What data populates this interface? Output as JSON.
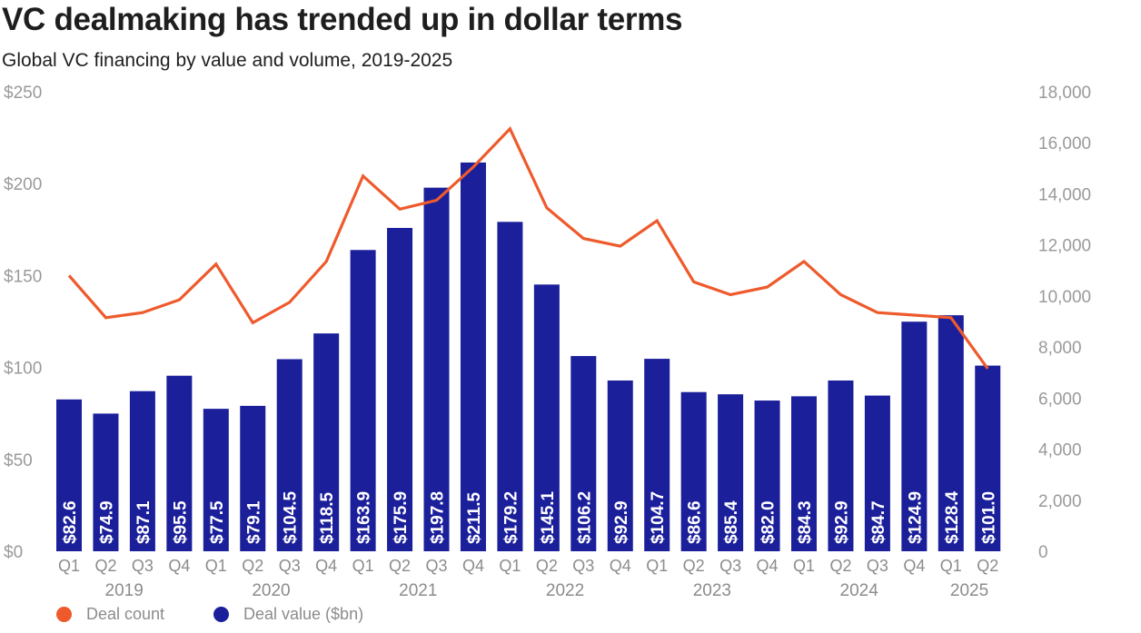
{
  "title": "VC dealmaking has trended up in dollar terms",
  "subtitle": "Global VC financing by value and volume, 2019-2025",
  "colors": {
    "bar": "#1b1f9a",
    "line": "#ee5a2c"
  },
  "legend": [
    {
      "label": "Deal count",
      "color": "#ee5a2c"
    },
    {
      "label": "Deal value ($bn)",
      "color": "#1b1f9a"
    }
  ],
  "chart_data": {
    "type": "bar",
    "categories": [
      "Q1",
      "Q2",
      "Q3",
      "Q4",
      "Q1",
      "Q2",
      "Q3",
      "Q4",
      "Q1",
      "Q2",
      "Q3",
      "Q4",
      "Q1",
      "Q2",
      "Q3",
      "Q4",
      "Q1",
      "Q2",
      "Q3",
      "Q4",
      "Q1",
      "Q2",
      "Q3",
      "Q4",
      "Q1",
      "Q2"
    ],
    "years": [
      "2019",
      "2020",
      "2021",
      "2022",
      "2023",
      "2024",
      "2025"
    ],
    "series": [
      {
        "name": "Deal value ($bn)",
        "type": "bar",
        "axis": "left",
        "values": [
          82.6,
          74.9,
          87.1,
          95.5,
          77.5,
          79.1,
          104.5,
          118.5,
          163.9,
          175.9,
          197.8,
          211.5,
          179.2,
          145.1,
          106.2,
          92.9,
          104.7,
          86.6,
          85.4,
          82.0,
          84.3,
          92.9,
          84.7,
          124.9,
          128.4,
          101.0
        ],
        "labels": [
          "$82.6",
          "$74.9",
          "$87.1",
          "$95.5",
          "$77.5",
          "$79.1",
          "$104.5",
          "$118.5",
          "$163.9",
          "$175.9",
          "$197.8",
          "$211.5",
          "$179.2",
          "$145.1",
          "$106.2",
          "$92.9",
          "$104.7",
          "$86.6",
          "$85.4",
          "$82.0",
          "$84.3",
          "$92.9",
          "$84.7",
          "$124.9",
          "$128.4",
          "$101.0"
        ]
      },
      {
        "name": "Deal count",
        "type": "line",
        "axis": "right",
        "values": [
          10800,
          9150,
          9350,
          9850,
          11250,
          8950,
          9750,
          11350,
          14700,
          13400,
          13750,
          15050,
          16550,
          13450,
          12250,
          11950,
          12950,
          10550,
          10050,
          10350,
          11350,
          10050,
          9350,
          9250,
          9150,
          7150
        ]
      }
    ],
    "y_left": {
      "range": [
        0,
        250
      ],
      "ticks": [
        "$0",
        "$50",
        "$100",
        "$150",
        "$200",
        "$250"
      ]
    },
    "y_right": {
      "range": [
        0,
        18000
      ],
      "ticks": [
        "0",
        "2,000",
        "4,000",
        "6,000",
        "8,000",
        "10,000",
        "12,000",
        "14,000",
        "16,000",
        "18,000"
      ]
    },
    "grid": false,
    "legend_position": "bottom-left"
  }
}
